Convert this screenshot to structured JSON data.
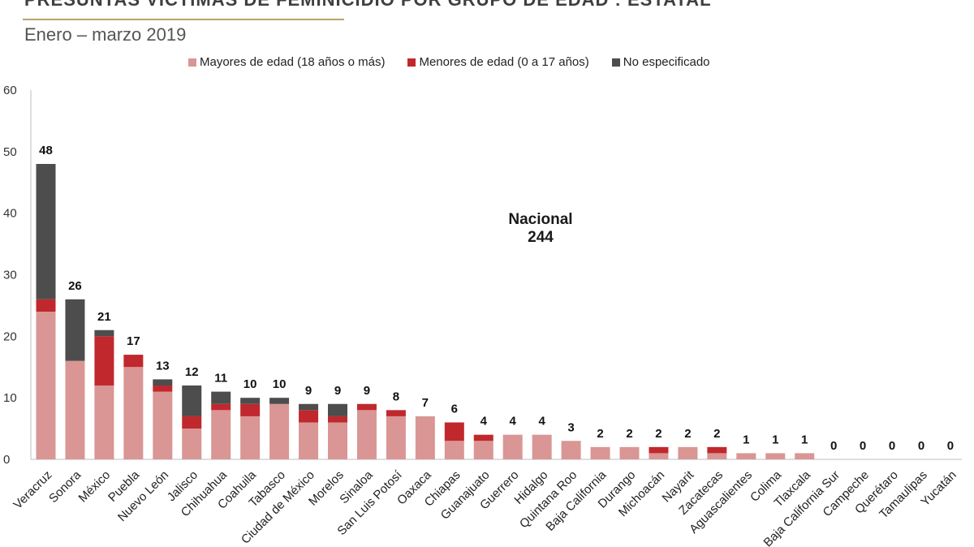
{
  "title": "PRESUNTAS VÍCTIMAS DE FEMINICIDIO POR GRUPO DE EDAD : ESTATAL",
  "subtitle": "Enero – marzo 2019",
  "annotation": {
    "line1": "Nacional",
    "line2": "244"
  },
  "chart_data": {
    "type": "bar",
    "stacked": true,
    "ylim": [
      0,
      60
    ],
    "yticks": [
      0,
      10,
      20,
      30,
      40,
      50,
      60
    ],
    "legend_position": "top",
    "grid": false,
    "categories": [
      "Veracruz",
      "Sonora",
      "México",
      "Puebla",
      "Nuevo León",
      "Jalisco",
      "Chihuahua",
      "Coahuila",
      "Tabasco",
      "Ciudad de México",
      "Morelos",
      "Sinaloa",
      "San Luis Potosí",
      "Oaxaca",
      "Chiapas",
      "Guanajuato",
      "Guerrero",
      "Hidalgo",
      "Quintana Roo",
      "Baja California",
      "Durango",
      "Michoacán",
      "Nayarit",
      "Zacatecas",
      "Aguascalientes",
      "Colima",
      "Tlaxcala",
      "Baja California Sur",
      "Campeche",
      "Querétaro",
      "Tamaulipas",
      "Yucatán"
    ],
    "series": [
      {
        "name": "Mayores de edad (18 años o más)",
        "color": "#d99694",
        "values": [
          24,
          16,
          12,
          15,
          11,
          5,
          8,
          7,
          9,
          6,
          6,
          8,
          7,
          7,
          3,
          3,
          4,
          4,
          3,
          2,
          2,
          1,
          2,
          1,
          1,
          1,
          1,
          0,
          0,
          0,
          0,
          0
        ]
      },
      {
        "name": "Menores de edad (0 a 17 años)",
        "color": "#c0282d",
        "values": [
          2,
          0,
          8,
          2,
          1,
          2,
          1,
          2,
          0,
          2,
          1,
          1,
          1,
          0,
          3,
          1,
          0,
          0,
          0,
          0,
          0,
          1,
          0,
          1,
          0,
          0,
          0,
          0,
          0,
          0,
          0,
          0
        ]
      },
      {
        "name": "No especificado",
        "color": "#4d4d4d",
        "values": [
          22,
          10,
          1,
          0,
          1,
          5,
          2,
          1,
          1,
          1,
          2,
          0,
          0,
          0,
          0,
          0,
          0,
          0,
          0,
          0,
          0,
          0,
          0,
          0,
          0,
          0,
          0,
          0,
          0,
          0,
          0,
          0
        ]
      }
    ],
    "totals": [
      48,
      26,
      21,
      17,
      13,
      12,
      11,
      10,
      10,
      9,
      9,
      9,
      8,
      7,
      6,
      4,
      4,
      4,
      3,
      2,
      2,
      2,
      2,
      2,
      1,
      1,
      1,
      0,
      0,
      0,
      0,
      0
    ]
  }
}
